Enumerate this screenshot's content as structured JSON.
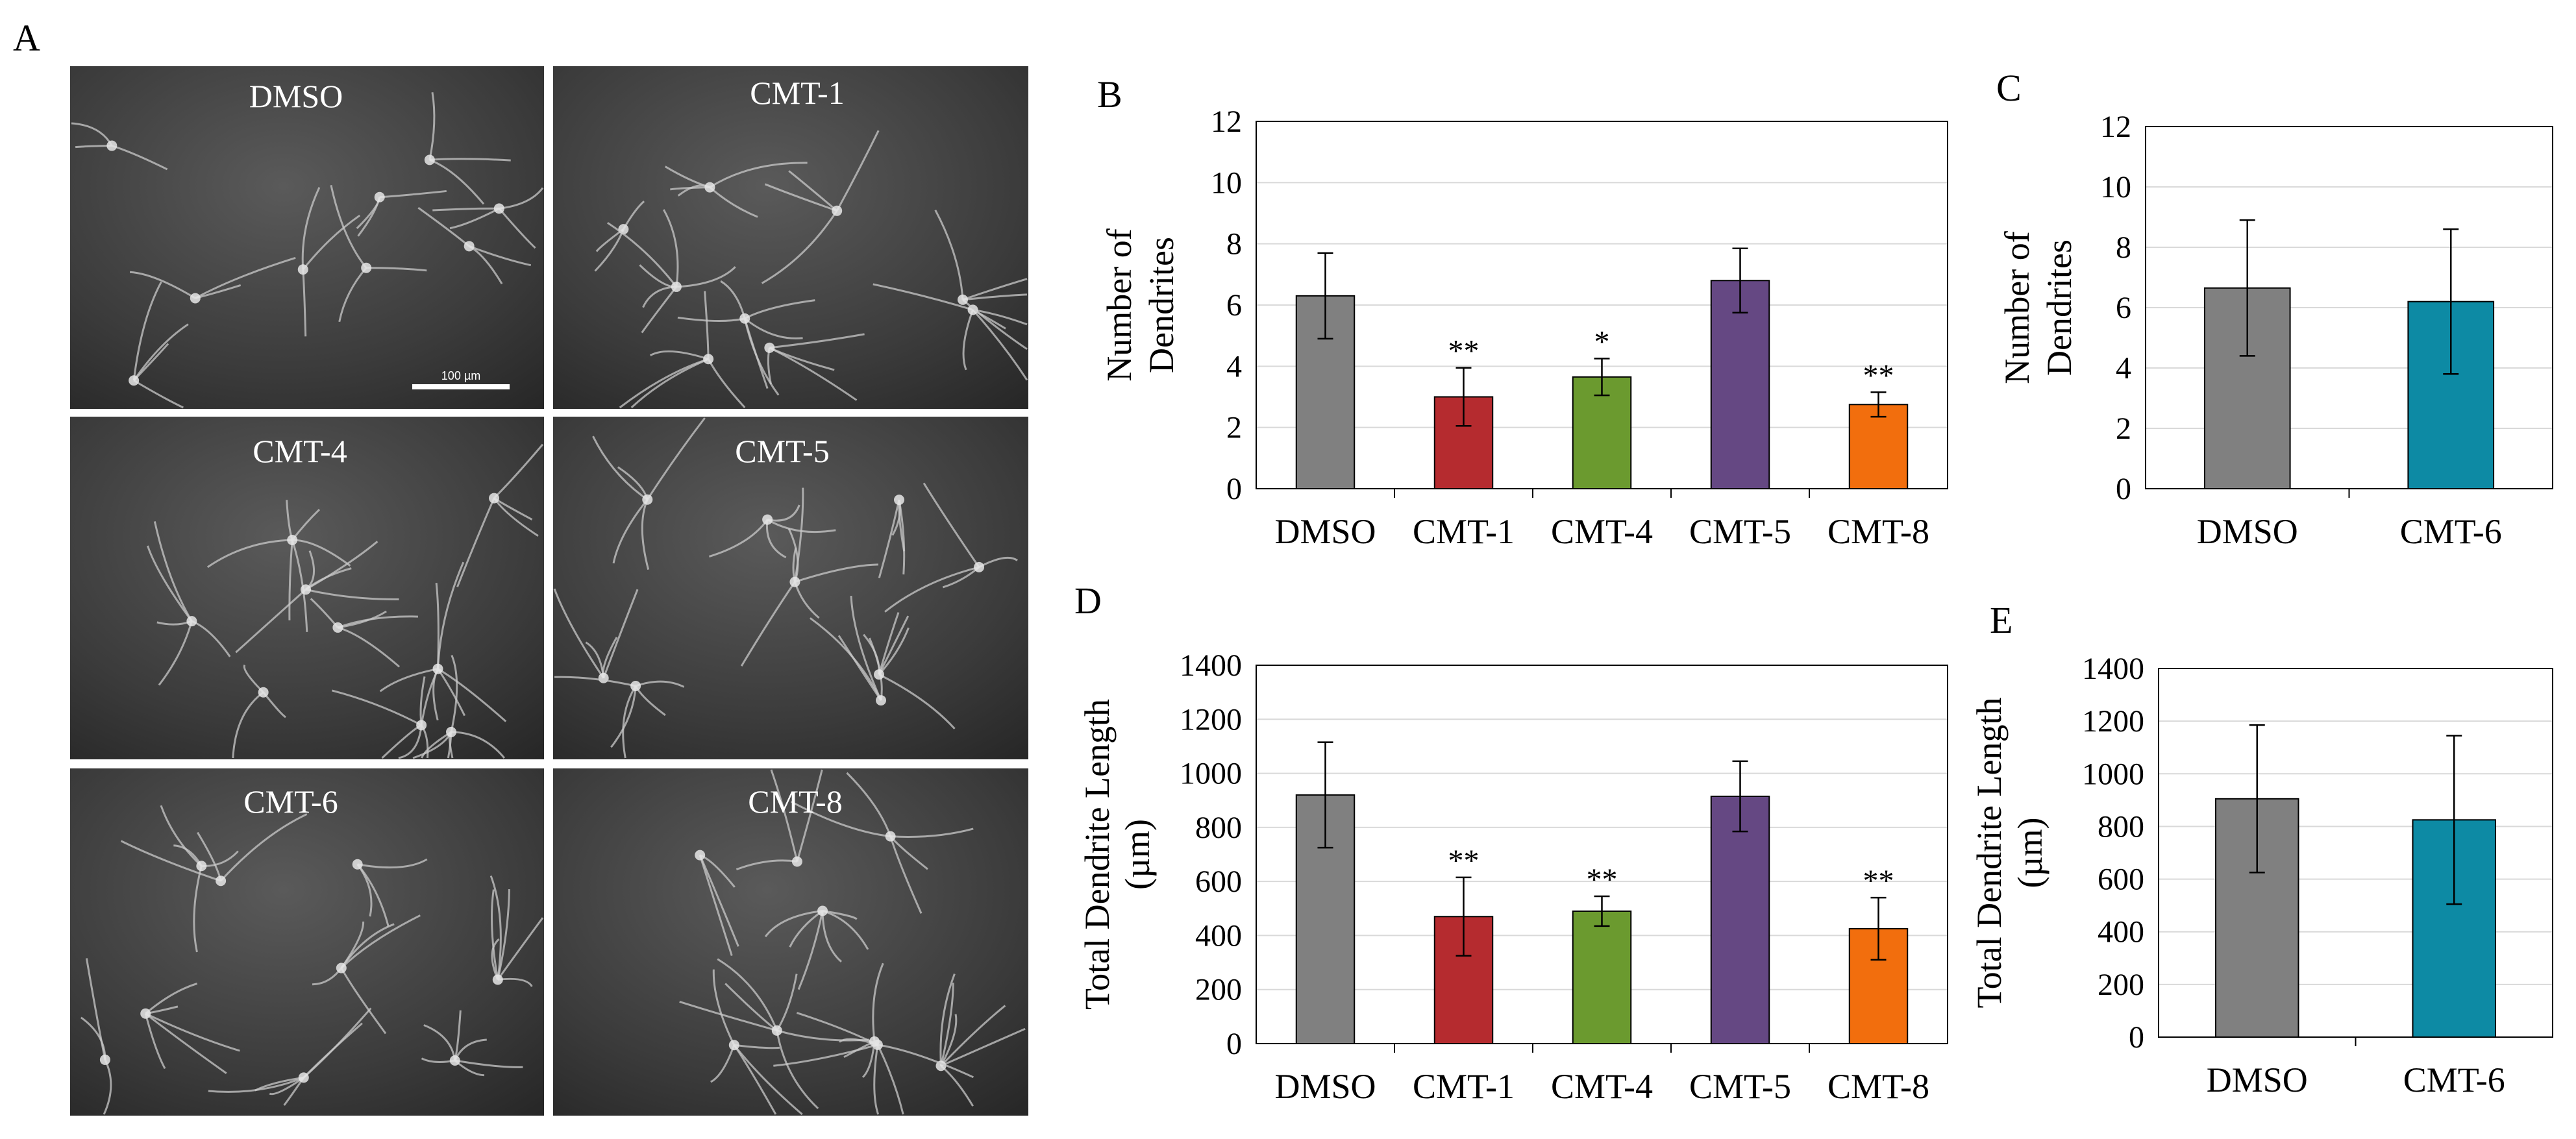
{
  "figure": {
    "panel_letters": [
      "A",
      "B",
      "C",
      "D",
      "E"
    ],
    "micrographs": {
      "labels": [
        "DMSO",
        "CMT-1",
        "CMT-4",
        "CMT-5",
        "CMT-6",
        "CMT-8"
      ],
      "scale_bar": "100 µm"
    }
  },
  "chart_data": [
    {
      "panel": "B",
      "type": "bar",
      "categories": [
        "DMSO",
        "CMT-1",
        "CMT-4",
        "CMT-5",
        "CMT-8"
      ],
      "values": [
        6.3,
        3.0,
        3.65,
        6.8,
        2.75
      ],
      "errors": [
        1.4,
        0.95,
        0.6,
        1.05,
        0.4
      ],
      "significance": [
        "",
        "**",
        "*",
        "",
        "**"
      ],
      "colors": [
        "#808080",
        "#b52b2f",
        "#6b9a2f",
        "#654883",
        "#f26e0d"
      ],
      "ylabel": [
        "Number of",
        "Dendrites"
      ],
      "ylim": [
        0,
        12
      ],
      "yticks": [
        0,
        2,
        4,
        6,
        8,
        10,
        12
      ],
      "grid": true
    },
    {
      "panel": "C",
      "type": "bar",
      "categories": [
        "DMSO",
        "CMT-6"
      ],
      "values": [
        6.65,
        6.2
      ],
      "errors": [
        2.25,
        2.4
      ],
      "significance": [
        "",
        ""
      ],
      "colors": [
        "#808080",
        "#0d8aa4"
      ],
      "ylabel": [
        "Number of",
        "Dendrites"
      ],
      "ylim": [
        0,
        12
      ],
      "yticks": [
        0,
        2,
        4,
        6,
        8,
        10,
        12
      ],
      "grid": true
    },
    {
      "panel": "D",
      "type": "bar",
      "categories": [
        "DMSO",
        "CMT-1",
        "CMT-4",
        "CMT-5",
        "CMT-8"
      ],
      "values": [
        920,
        470,
        490,
        915,
        425
      ],
      "errors": [
        195,
        145,
        55,
        130,
        115
      ],
      "significance": [
        "",
        "**",
        "**",
        "",
        "**"
      ],
      "colors": [
        "#808080",
        "#b52b2f",
        "#6b9a2f",
        "#654883",
        "#f26e0d"
      ],
      "ylabel": [
        "Total Dendrite Length",
        "(µm)"
      ],
      "ylim": [
        0,
        1400
      ],
      "yticks": [
        0,
        200,
        400,
        600,
        800,
        1000,
        1200,
        1400
      ],
      "grid": true
    },
    {
      "panel": "E",
      "type": "bar",
      "categories": [
        "DMSO",
        "CMT-6"
      ],
      "values": [
        905,
        825
      ],
      "errors": [
        280,
        320
      ],
      "significance": [
        "",
        ""
      ],
      "colors": [
        "#808080",
        "#0d8aa4"
      ],
      "ylabel": [
        "Total Dendrite Length",
        "(µm)"
      ],
      "ylim": [
        0,
        1400
      ],
      "yticks": [
        0,
        200,
        400,
        600,
        800,
        1000,
        1200,
        1400
      ],
      "grid": true
    }
  ]
}
